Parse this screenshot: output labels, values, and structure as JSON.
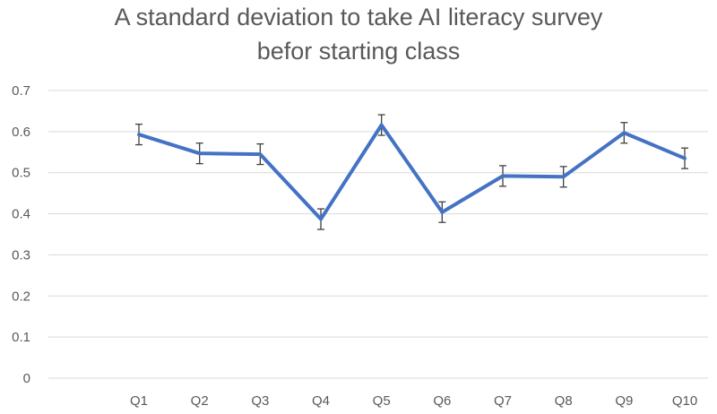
{
  "chart_data": {
    "type": "line",
    "title_line1": "A standard deviation to take AI literacy survey",
    "title_line2": "befor starting class",
    "categories": [
      "Q1",
      "Q2",
      "Q3",
      "Q4",
      "Q5",
      "Q6",
      "Q7",
      "Q8",
      "Q9",
      "Q10"
    ],
    "series": [
      {
        "values": [
          0.593,
          0.547,
          0.545,
          0.387,
          0.616,
          0.404,
          0.492,
          0.49,
          0.597,
          0.535
        ],
        "error": [
          0.025,
          0.025,
          0.025,
          0.025,
          0.025,
          0.025,
          0.025,
          0.025,
          0.025,
          0.025
        ],
        "color": "#4472C4"
      }
    ],
    "yticks": [
      "0",
      "0.1",
      "0.2",
      "0.3",
      "0.4",
      "0.5",
      "0.6",
      "0.7"
    ],
    "ylim": [
      0,
      0.7
    ],
    "grid": true,
    "gridColor": "#D9D9D9",
    "errorBarColor": "#404040"
  }
}
